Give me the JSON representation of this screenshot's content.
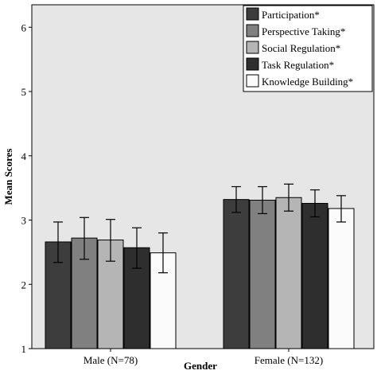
{
  "chart_data": {
    "type": "bar",
    "title": "",
    "xlabel": "Gender",
    "ylabel": "Mean Scores",
    "ylim": [
      1,
      6.35
    ],
    "yticks": [
      "1",
      "2",
      "3",
      "4",
      "5",
      "6"
    ],
    "categories": [
      "Male (N=78)",
      "Female (N=132)"
    ],
    "legend_position": "top-right",
    "grid": false,
    "series": [
      {
        "name": "Participation*",
        "color": "#3d3d3d",
        "values": [
          2.66,
          3.32
        ],
        "error_low": [
          2.34,
          3.12
        ],
        "error_high": [
          2.97,
          3.52
        ]
      },
      {
        "name": "Perspective Taking*",
        "color": "#808080",
        "values": [
          2.72,
          3.31
        ],
        "error_low": [
          2.39,
          3.1
        ],
        "error_high": [
          3.04,
          3.52
        ]
      },
      {
        "name": "Social Regulation*",
        "color": "#b5b5b5",
        "values": [
          2.69,
          3.35
        ],
        "error_low": [
          2.36,
          3.14
        ],
        "error_high": [
          3.01,
          3.56
        ]
      },
      {
        "name": "Task Regulation*",
        "color": "#2e2e2e",
        "values": [
          2.57,
          3.26
        ],
        "error_low": [
          2.25,
          3.05
        ],
        "error_high": [
          2.88,
          3.47
        ]
      },
      {
        "name": "Knowledge Building*",
        "color": "#fbfbfb",
        "values": [
          2.49,
          3.18
        ],
        "error_low": [
          2.18,
          2.97
        ],
        "error_high": [
          2.8,
          3.38
        ]
      }
    ]
  }
}
